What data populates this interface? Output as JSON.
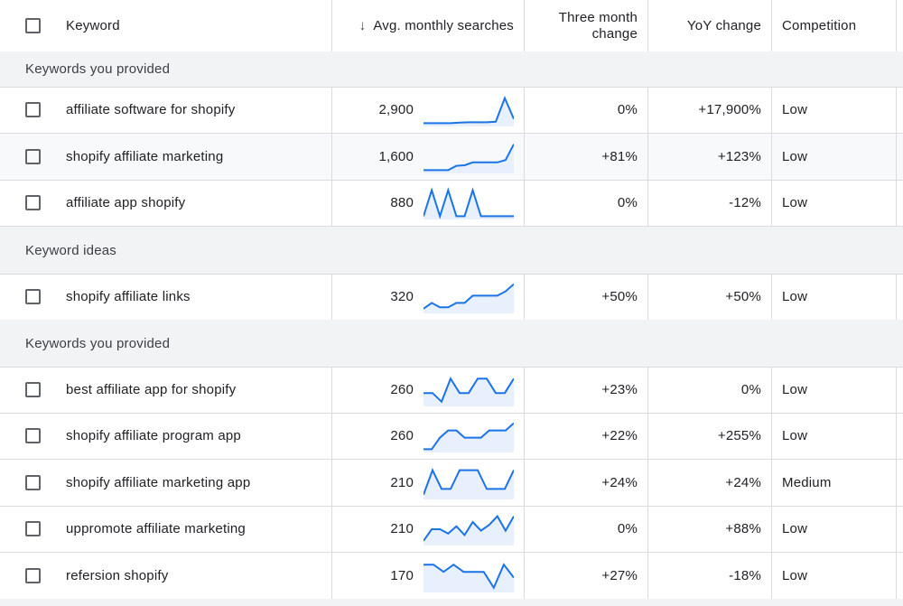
{
  "header": {
    "keyword": "Keyword",
    "sort_arrow": "↓",
    "avg_searches": "Avg. monthly searches",
    "three_month_line1": "Three month",
    "three_month_line2": "change",
    "yoy": "YoY change",
    "competition": "Competition"
  },
  "colors": {
    "accent": "#1a73e8",
    "spark_fill": "#e8f0fe",
    "group_bg": "#f1f3f4"
  },
  "groups": {
    "g1": "Keywords you provided",
    "g2": "Keyword ideas",
    "g3": "Keywords you provided"
  },
  "rows": [
    {
      "keyword": "affiliate software for shopify",
      "searches": "2,900",
      "three_month": "0%",
      "yoy": "+17,900%",
      "competition": "Low",
      "trend": [
        0.05,
        0.05,
        0.05,
        0.05,
        0.07,
        0.08,
        0.08,
        0.08,
        0.1,
        0.92,
        0.2
      ]
    },
    {
      "keyword": "shopify affiliate marketing",
      "searches": "1,600",
      "three_month": "+81%",
      "yoy": "+123%",
      "competition": "Low",
      "trend": [
        0.05,
        0.05,
        0.05,
        0.05,
        0.2,
        0.22,
        0.32,
        0.32,
        0.32,
        0.32,
        0.4,
        0.95
      ]
    },
    {
      "keyword": "affiliate app shopify",
      "searches": "880",
      "three_month": "0%",
      "yoy": "-12%",
      "competition": "Low",
      "trend": [
        0.05,
        0.95,
        0.05,
        0.95,
        0.05,
        0.05,
        0.95,
        0.05,
        0.05,
        0.05,
        0.05,
        0.05
      ]
    },
    {
      "keyword": "shopify affiliate links",
      "searches": "320",
      "three_month": "+50%",
      "yoy": "+50%",
      "competition": "Low",
      "trend": [
        0.1,
        0.3,
        0.15,
        0.15,
        0.3,
        0.3,
        0.55,
        0.55,
        0.55,
        0.55,
        0.7,
        0.95
      ]
    },
    {
      "keyword": "best affiliate app for shopify",
      "searches": "260",
      "three_month": "+23%",
      "yoy": "0%",
      "competition": "Low",
      "trend": [
        0.4,
        0.4,
        0.1,
        0.9,
        0.4,
        0.4,
        0.9,
        0.9,
        0.4,
        0.4,
        0.9
      ]
    },
    {
      "keyword": "shopify affiliate program app",
      "searches": "260",
      "three_month": "+22%",
      "yoy": "+255%",
      "competition": "Low",
      "trend": [
        0.05,
        0.05,
        0.45,
        0.7,
        0.7,
        0.45,
        0.45,
        0.45,
        0.7,
        0.7,
        0.7,
        0.95
      ]
    },
    {
      "keyword": "shopify affiliate marketing app",
      "searches": "210",
      "three_month": "+24%",
      "yoy": "+24%",
      "competition": "Medium",
      "trend": [
        0.1,
        0.95,
        0.3,
        0.3,
        0.95,
        0.95,
        0.95,
        0.3,
        0.3,
        0.3,
        0.95
      ]
    },
    {
      "keyword": "uppromote affiliate marketing",
      "searches": "210",
      "three_month": "0%",
      "yoy": "+88%",
      "competition": "Low",
      "trend": [
        0.1,
        0.5,
        0.5,
        0.35,
        0.6,
        0.3,
        0.75,
        0.45,
        0.65,
        0.95,
        0.45,
        0.95
      ]
    },
    {
      "keyword": "refersion shopify",
      "searches": "170",
      "three_month": "+27%",
      "yoy": "-18%",
      "competition": "Low",
      "trend": [
        0.9,
        0.9,
        0.65,
        0.9,
        0.65,
        0.65,
        0.65,
        0.1,
        0.9,
        0.45
      ]
    }
  ]
}
